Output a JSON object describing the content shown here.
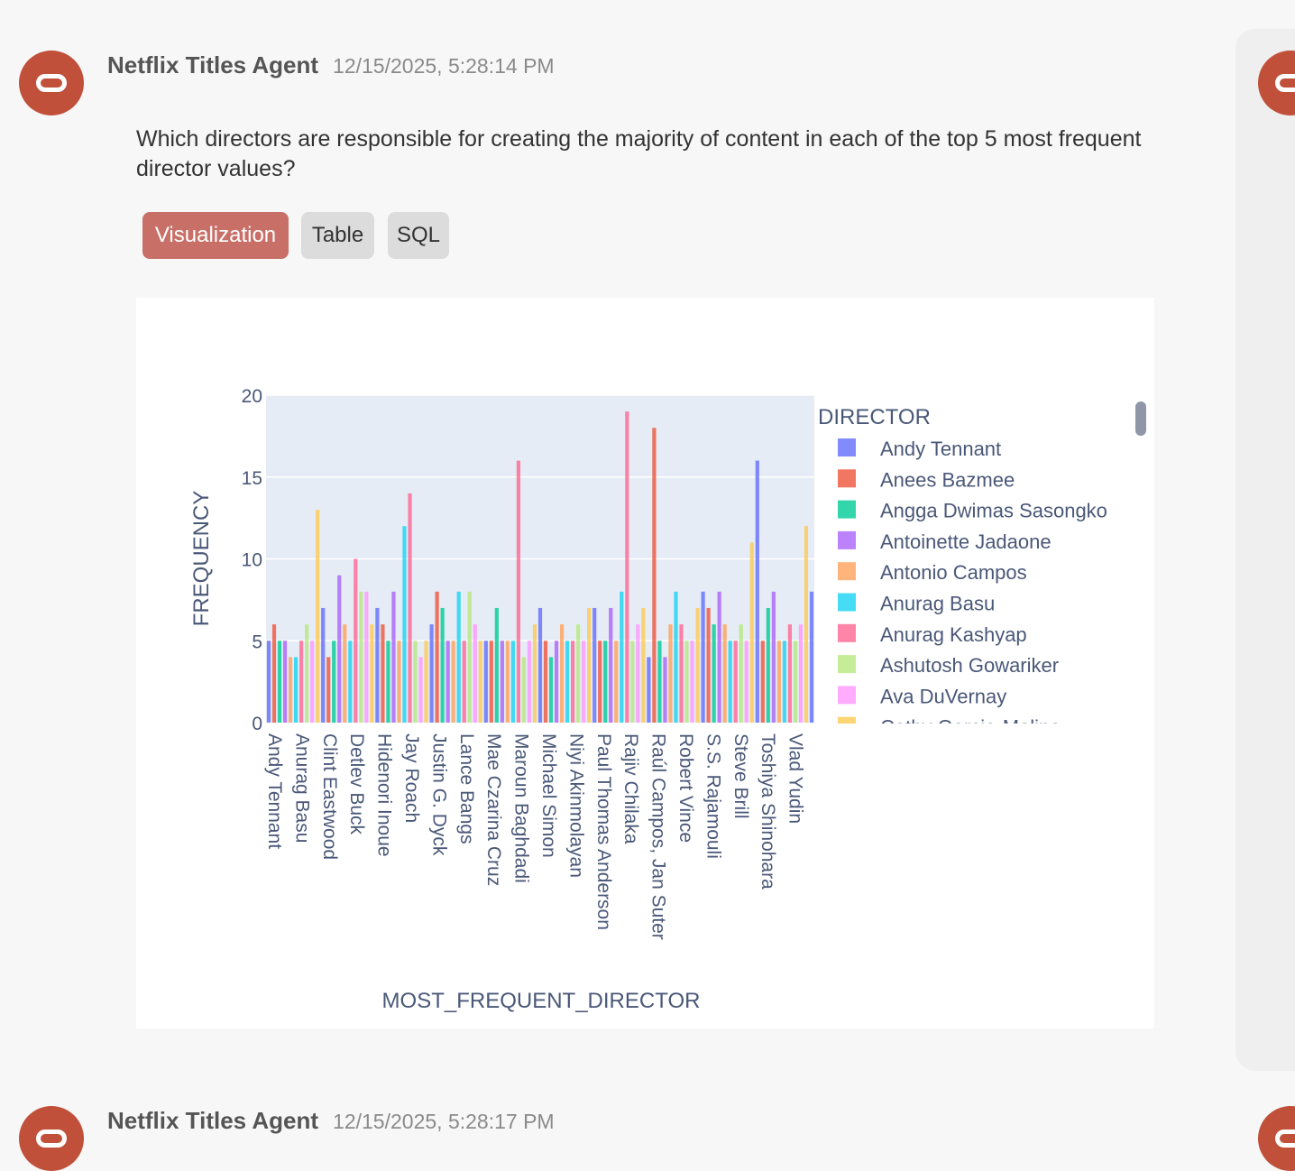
{
  "message1": {
    "agent_name": "Netflix Titles Agent",
    "timestamp": "12/15/2025, 5:28:14 PM",
    "question": "Which directors are responsible for creating the majority of content in each of the top 5 most frequent director values?",
    "tabs": [
      {
        "label": "Visualization",
        "active": true
      },
      {
        "label": "Table",
        "active": false
      },
      {
        "label": "SQL",
        "active": false
      }
    ]
  },
  "message2": {
    "agent_name": "Netflix Titles Agent",
    "timestamp": "12/15/2025, 5:28:17 PM"
  },
  "colors": {
    "accent": "#c0503a",
    "plot_bg": "#e5ecf6",
    "axis_text": "#4a5878",
    "palette": [
      "#636efa",
      "#ef553b",
      "#00cc96",
      "#ab63fa",
      "#ffa15a",
      "#19d3f3",
      "#ff6692",
      "#b6e880",
      "#ff97ff",
      "#fecb52"
    ]
  },
  "chart_data": {
    "type": "bar",
    "xlabel": "MOST_FREQUENT_DIRECTOR",
    "ylabel": "FREQUENCY",
    "ylim": [
      0,
      20
    ],
    "yticks": [
      0,
      5,
      10,
      15,
      20
    ],
    "legend_title": "DIRECTOR",
    "legend_entries": [
      "Andy Tennant",
      "Anees Bazmee",
      "Angga Dwimas Sasongko",
      "Antoinette Jadaone",
      "Antonio Campos",
      "Anurag Basu",
      "Anurag Kashyap",
      "Ashutosh Gowariker",
      "Ava DuVernay",
      "Cathy Garcia-Molina"
    ],
    "x_tick_labels": [
      "Andy Tennant",
      "Anurag Basu",
      "Clint Eastwood",
      "Detlev Buck",
      "Hidenori Inoue",
      "Jay Roach",
      "Justin G. Dyck",
      "Lance Bangs",
      "Mae Czarina Cruz",
      "Maroun Baghdadi",
      "Michael Simon",
      "Niyi Akinmolayan",
      "Paul Thomas Anderson",
      "Rajiv Chilaka",
      "Raúl Campos, Jan Suter",
      "Robert Vince",
      "S.S. Rajamouli",
      "Steve Brill",
      "Toshiya Shinohara",
      "Vlad Yudin"
    ],
    "values": [
      5,
      6,
      5,
      5,
      4,
      4,
      5,
      6,
      5,
      13,
      7,
      4,
      5,
      9,
      6,
      5,
      10,
      8,
      8,
      6,
      7,
      6,
      5,
      8,
      5,
      12,
      14,
      5,
      4,
      5,
      6,
      8,
      7,
      5,
      5,
      8,
      5,
      8,
      6,
      5,
      5,
      5,
      7,
      5,
      5,
      5,
      16,
      4,
      5,
      6,
      7,
      5,
      4,
      5,
      6,
      5,
      5,
      6,
      5,
      7,
      7,
      5,
      5,
      7,
      5,
      8,
      19,
      5,
      6,
      7,
      4,
      18,
      5,
      4,
      6,
      8,
      6,
      5,
      5,
      7,
      8,
      7,
      6,
      8,
      6,
      5,
      5,
      6,
      5,
      11,
      16,
      5,
      7,
      8,
      5,
      5,
      6,
      5,
      6,
      12,
      8
    ]
  }
}
